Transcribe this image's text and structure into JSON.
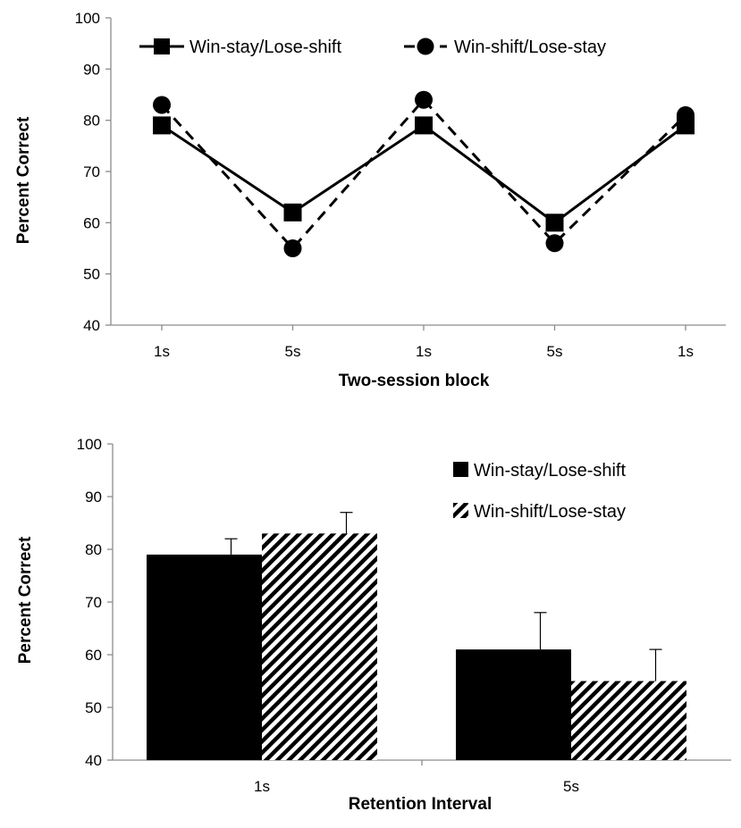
{
  "chart_data": [
    {
      "type": "line",
      "title": "",
      "xlabel": "Two-session block",
      "ylabel": "Percent Correct",
      "categories": [
        "1s",
        "5s",
        "1s",
        "5s",
        "1s"
      ],
      "ylim": [
        40,
        100
      ],
      "yticks": [
        40,
        50,
        60,
        70,
        80,
        90,
        100
      ],
      "grid": false,
      "legend_position": "top",
      "series": [
        {
          "name": "Win-stay/Lose-shift",
          "values": [
            79,
            62,
            79,
            60,
            79
          ],
          "marker": "square",
          "line_style": "solid",
          "color": "#000000"
        },
        {
          "name": "Win-shift/Lose-stay",
          "values": [
            83,
            55,
            84,
            56,
            81
          ],
          "marker": "circle",
          "line_style": "dashed",
          "color": "#000000"
        }
      ]
    },
    {
      "type": "bar",
      "title": "",
      "xlabel": "Retention Interval",
      "ylabel": "Percent Correct",
      "categories": [
        "1s",
        "5s"
      ],
      "ylim": [
        40,
        100
      ],
      "yticks": [
        40,
        50,
        60,
        70,
        80,
        90,
        100
      ],
      "grid": false,
      "legend_position": "top-right",
      "series": [
        {
          "name": "Win-stay/Lose-shift",
          "values": [
            79,
            61
          ],
          "errors": [
            3,
            7
          ],
          "fill": "solid",
          "color": "#000000"
        },
        {
          "name": "Win-shift/Lose-stay",
          "values": [
            83,
            55
          ],
          "errors": [
            4,
            6
          ],
          "fill": "hatched",
          "color": "#000000"
        }
      ]
    }
  ]
}
